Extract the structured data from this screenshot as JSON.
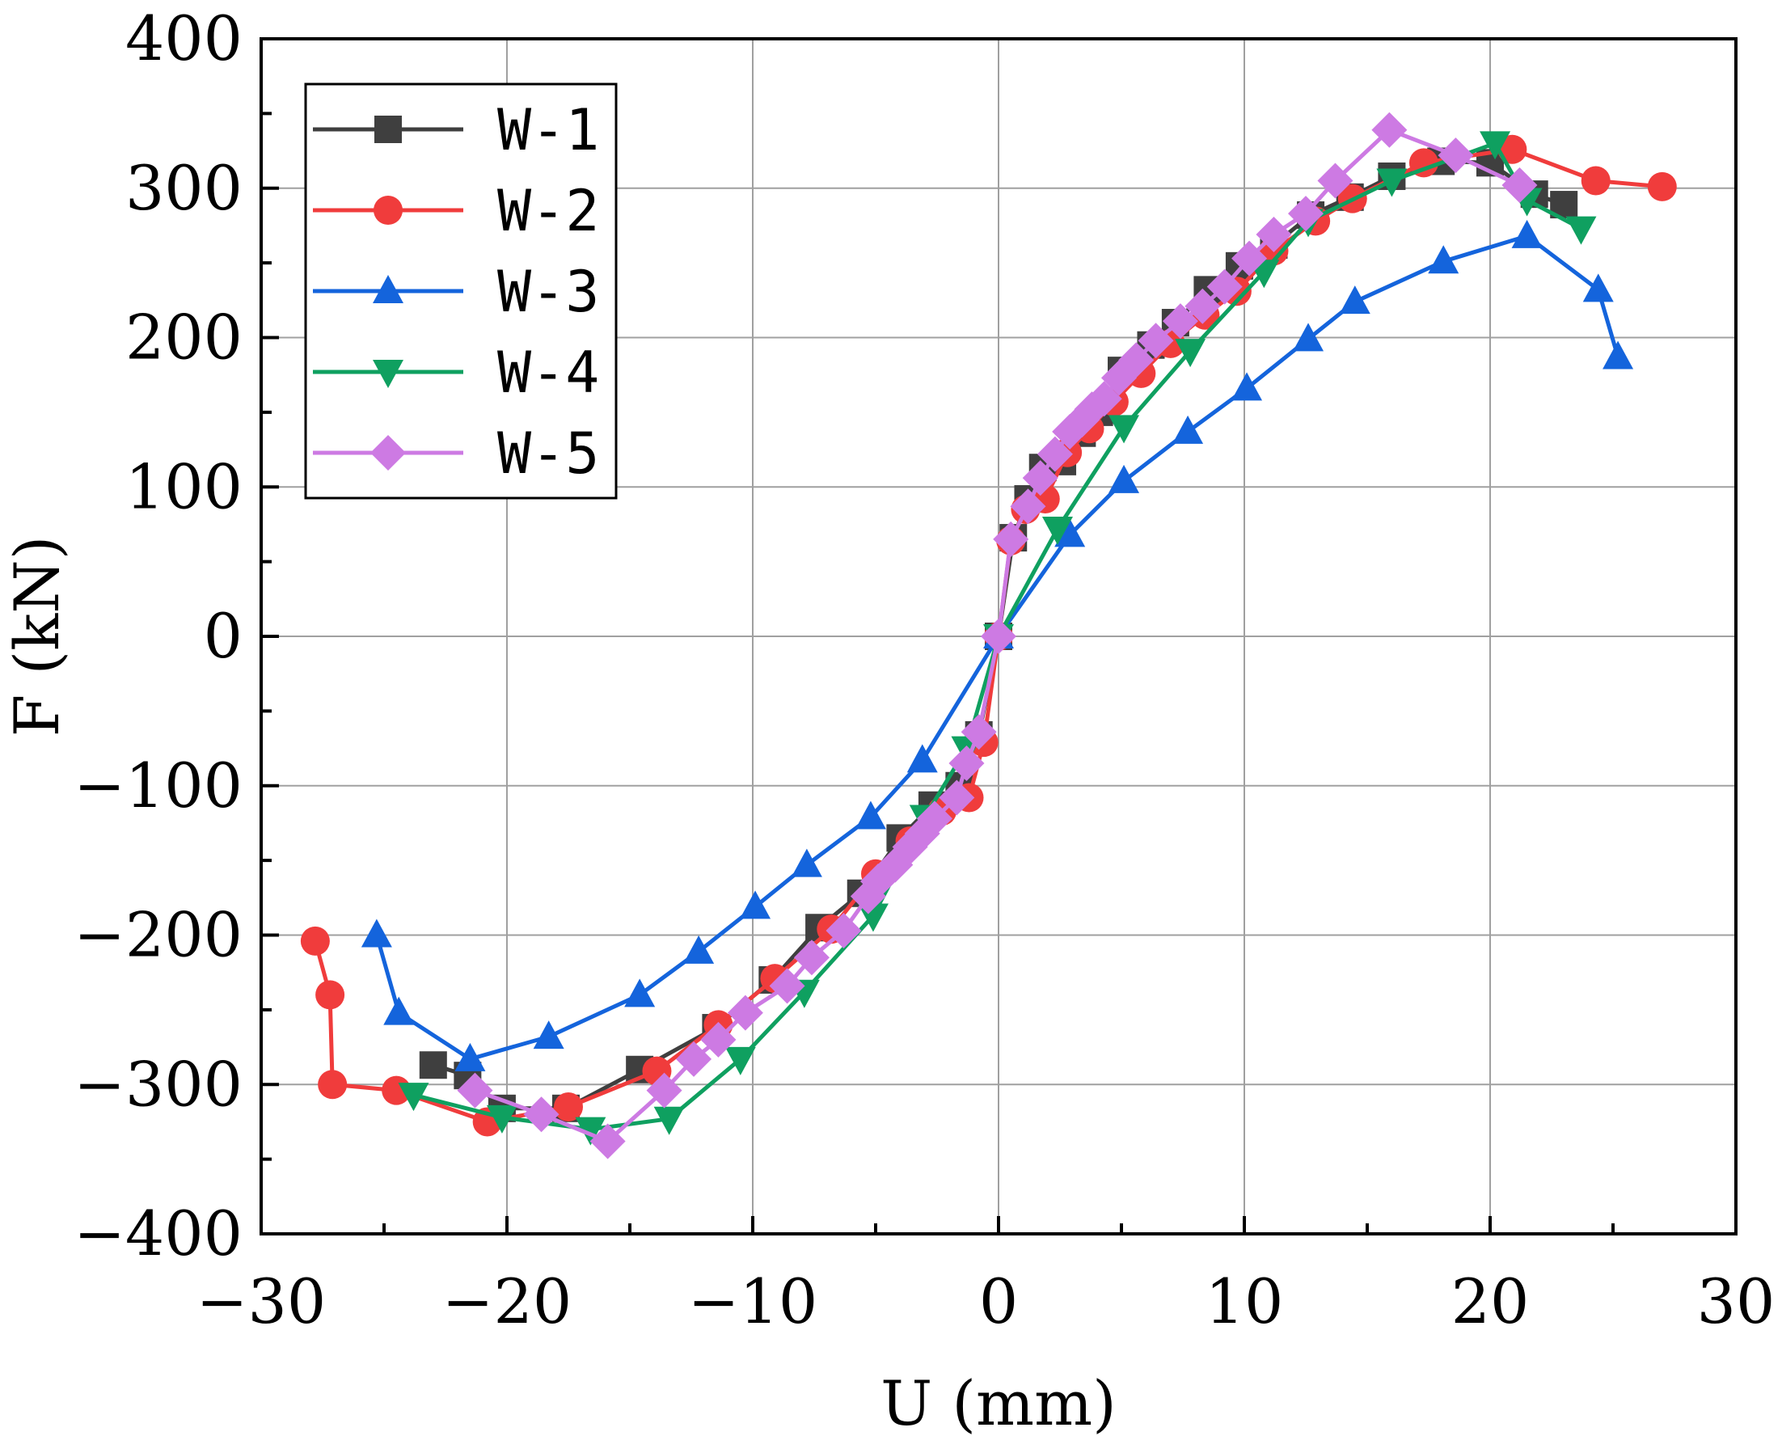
{
  "chart_data": {
    "type": "line",
    "title": "",
    "xlabel": "U (mm)",
    "ylabel": "F (kN)",
    "xlim": [
      -30,
      30
    ],
    "ylim": [
      -400,
      400
    ],
    "xticks": [
      -30,
      -20,
      -10,
      0,
      10,
      20,
      30
    ],
    "yticks": [
      -400,
      -300,
      -200,
      -100,
      0,
      100,
      200,
      300,
      400
    ],
    "xtick_labels": [
      "−30",
      "−20",
      "−10",
      "0",
      "10",
      "20",
      "30"
    ],
    "ytick_labels": [
      "−400",
      "−300",
      "−200",
      "−100",
      "0",
      "100",
      "200",
      "300",
      "400"
    ],
    "grid": true,
    "legend_position": "top-left",
    "series": [
      {
        "name": "W-1",
        "color": "#3f3f3f",
        "marker": "square",
        "x": [
          -23,
          -21.6,
          -20.2,
          -17.6,
          -14.6,
          -11.5,
          -9.2,
          -7.3,
          -5.6,
          -4,
          -2.7,
          -1.6,
          -0.8,
          0,
          0.6,
          1.2,
          1.8,
          2.6,
          3.4,
          4.1,
          5,
          6.2,
          7.2,
          8.5,
          9.8,
          11.2,
          12.7,
          14.3,
          16,
          18,
          20,
          21.8,
          23
        ],
        "y": [
          -287,
          -294,
          -316,
          -316,
          -290,
          -262,
          -230,
          -195,
          -172,
          -135,
          -113,
          -100,
          -66,
          0,
          66,
          92,
          113,
          117,
          136,
          150,
          178,
          195,
          210,
          232,
          248,
          262,
          282,
          294,
          308,
          318,
          317,
          296,
          289
        ]
      },
      {
        "name": "W-2",
        "color": "#f03c3c",
        "marker": "circle",
        "x": [
          -27.8,
          -27.2,
          -27.1,
          -24.5,
          -20.8,
          -17.5,
          -13.9,
          -11.4,
          -9.1,
          -6.8,
          -5,
          -3.6,
          -2.3,
          -1.2,
          -0.6,
          0,
          0.5,
          1.1,
          1.9,
          2.8,
          3.7,
          4.7,
          5.8,
          7,
          8.4,
          9.7,
          11.2,
          12.9,
          14.4,
          17.3,
          20.9,
          24.3,
          27
        ],
        "y": [
          -204,
          -240,
          -300,
          -304,
          -325,
          -315,
          -291,
          -260,
          -229,
          -196,
          -159,
          -137,
          -117,
          -108,
          -71,
          0,
          64,
          85,
          92,
          123,
          139,
          157,
          176,
          196,
          215,
          231,
          258,
          278,
          293,
          317,
          326,
          305,
          301
        ]
      },
      {
        "name": "W-3",
        "color": "#1464dc",
        "marker": "triangle-up",
        "x": [
          -25.3,
          -24.4,
          -21.5,
          -18.3,
          -14.6,
          -12.2,
          -9.9,
          -7.8,
          -5.2,
          -3.1,
          0,
          2.9,
          5.1,
          7.7,
          10.1,
          12.6,
          14.5,
          18.1,
          21.5,
          24.4,
          25.2
        ],
        "y": [
          -200,
          -252,
          -283,
          -268,
          -240,
          -211,
          -181,
          -153,
          -121,
          -83,
          0,
          68,
          104,
          137,
          166,
          199,
          224,
          251,
          268,
          232,
          187
        ]
      },
      {
        "name": "W-4",
        "color": "#0fa060",
        "marker": "triangle-down",
        "x": [
          -23.8,
          -20.2,
          -16.6,
          -13.4,
          -10.5,
          -7.9,
          -5.1,
          -3,
          -1.3,
          0,
          2.4,
          5.1,
          7.8,
          10.8,
          12.6,
          16,
          20.2,
          21.5,
          23.7
        ],
        "y": [
          -307,
          -322,
          -330,
          -323,
          -283,
          -238,
          -187,
          -121,
          -75,
          0,
          72,
          140,
          191,
          244,
          278,
          305,
          330,
          292,
          273
        ]
      },
      {
        "name": "W-5",
        "color": "#cd7ae3",
        "marker": "diamond",
        "x": [
          -21.3,
          -18.6,
          -15.9,
          -13.6,
          -12.4,
          -11.4,
          -10.3,
          -8.6,
          -7.6,
          -6.3,
          -5.3,
          -4.9,
          -4.2,
          -3.6,
          -3.1,
          -2.6,
          -1.7,
          -1.3,
          -0.8,
          0,
          0.5,
          1.2,
          1.7,
          2.3,
          2.9,
          3.4,
          3.8,
          4.3,
          4.9,
          5.6,
          6.4,
          7.4,
          8.3,
          9.2,
          10.2,
          11.2,
          12.5,
          13.7,
          15.9,
          18.6,
          21.2
        ],
        "y": [
          -304,
          -320,
          -338,
          -304,
          -283,
          -270,
          -252,
          -234,
          -215,
          -197,
          -174,
          -164,
          -153,
          -141,
          -132,
          -122,
          -108,
          -85,
          -64,
          0,
          65,
          87,
          106,
          122,
          137,
          145,
          152,
          159,
          173,
          185,
          198,
          211,
          221,
          234,
          253,
          269,
          283,
          305,
          339,
          322,
          302
        ]
      }
    ]
  }
}
